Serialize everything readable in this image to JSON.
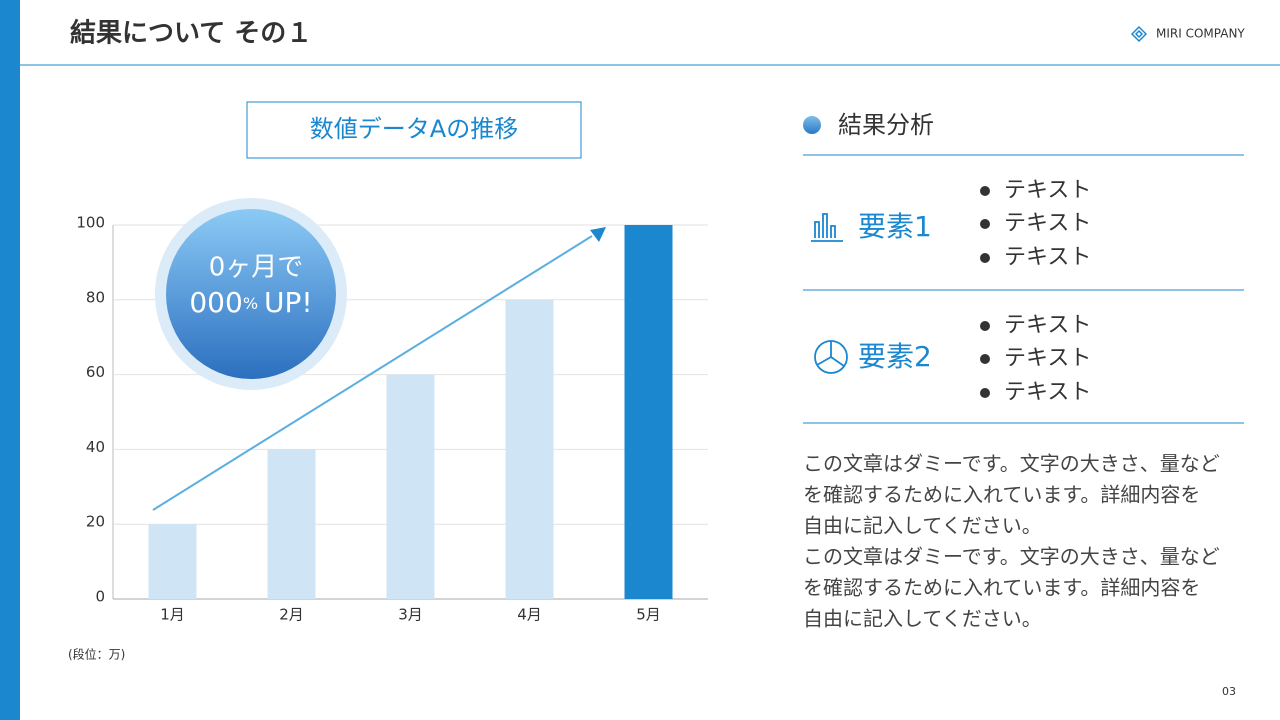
{
  "header": {
    "title": "結果について その１",
    "company": "MIRI COMPANY",
    "page": "03"
  },
  "chart_data": {
    "type": "bar",
    "title": "数値データAの推移",
    "unit_note": "(段位：万)",
    "categories": [
      "1月",
      "2月",
      "3月",
      "4月",
      "5月"
    ],
    "values": [
      20,
      40,
      60,
      80,
      100
    ],
    "colors": [
      "#cfe4f5",
      "#cfe4f5",
      "#cfe4f5",
      "#cfe4f5",
      "#1a87cf"
    ],
    "ylim": [
      0,
      100
    ],
    "yticks": [
      0,
      20,
      40,
      60,
      80,
      100
    ],
    "grid": true
  },
  "badge": {
    "line1": "0ヶ月で",
    "number": "000",
    "unit": "%",
    "suffix": "UP!"
  },
  "analysis": {
    "title": "結果分析",
    "elements": [
      {
        "label": "要素1",
        "items": [
          "テキスト",
          "テキスト",
          "テキスト"
        ]
      },
      {
        "label": "要素2",
        "items": [
          "テキスト",
          "テキスト",
          "テキスト"
        ]
      }
    ],
    "paragraph": [
      "この文章はダミーです。文字の大きさ、量など",
      "を確認するために入れています。詳細内容を",
      "自由に記入してください。",
      "この文章はダミーです。文字の大きさ、量など",
      "を確認するために入れています。詳細内容を",
      "自由に記入してください。"
    ]
  }
}
